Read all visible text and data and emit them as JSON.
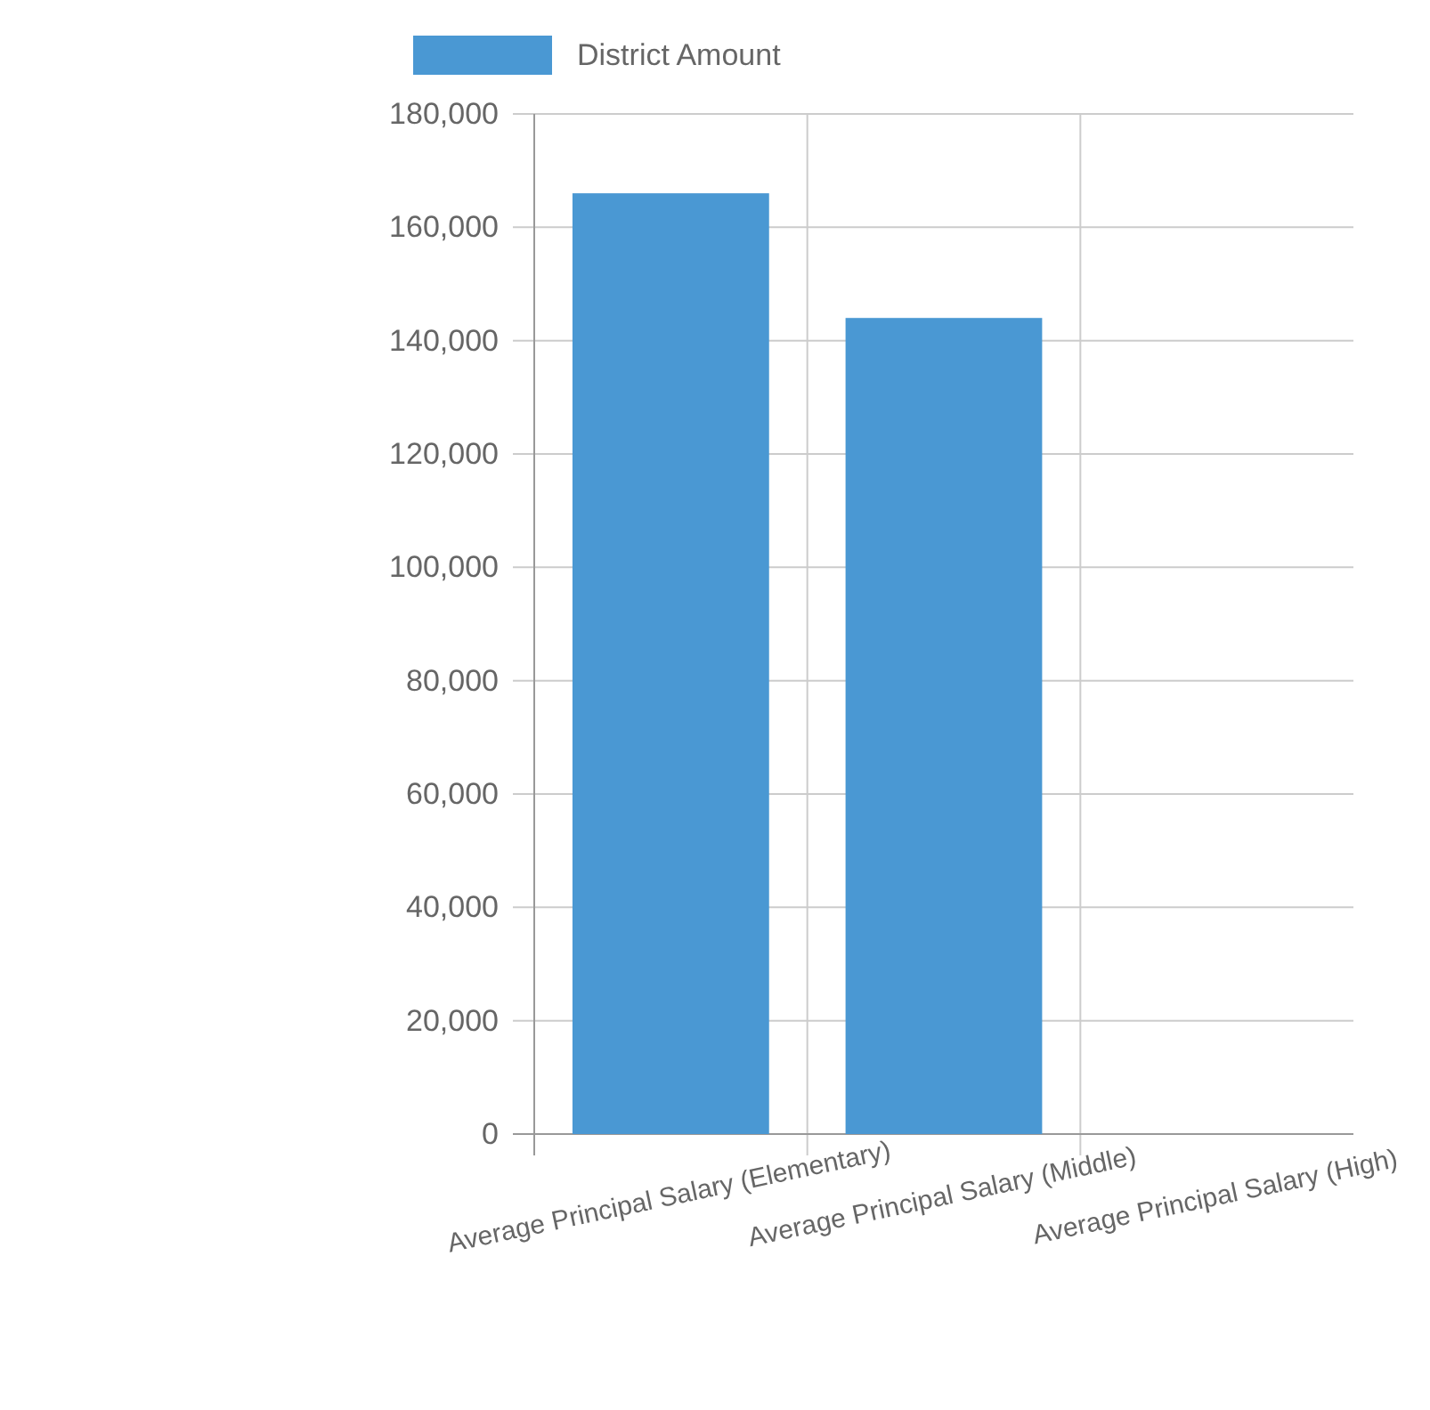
{
  "chart_data": {
    "type": "bar",
    "categories": [
      "Average Principal Salary (Elementary)",
      "Average Principal Salary (Middle)",
      "Average Principal Salary (High)"
    ],
    "series": [
      {
        "name": "District Amount",
        "color": "#4a98d3",
        "values": [
          166000,
          144000,
          null
        ]
      }
    ],
    "ylim": [
      0,
      180000
    ],
    "yticks": [
      {
        "value": 0,
        "label": "0"
      },
      {
        "value": 20000,
        "label": "20,000"
      },
      {
        "value": 40000,
        "label": "40,000"
      },
      {
        "value": 60000,
        "label": "60,000"
      },
      {
        "value": 80000,
        "label": "80,000"
      },
      {
        "value": 100000,
        "label": "100,000"
      },
      {
        "value": 120000,
        "label": "120,000"
      },
      {
        "value": 140000,
        "label": "140,000"
      },
      {
        "value": 160000,
        "label": "160,000"
      },
      {
        "value": 180000,
        "label": "180,000"
      }
    ],
    "grid": true,
    "legend": "top"
  }
}
